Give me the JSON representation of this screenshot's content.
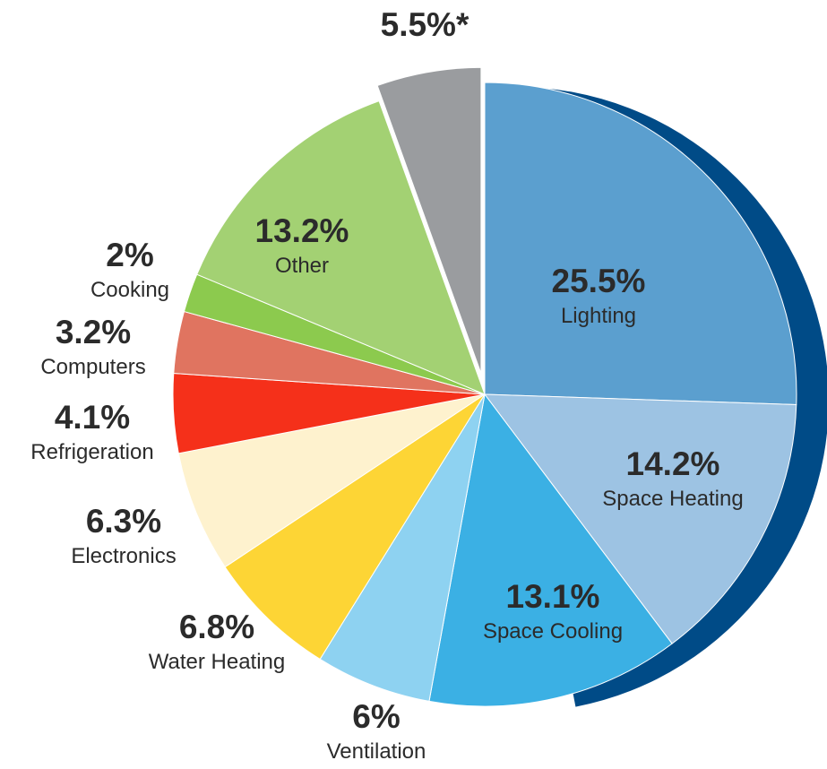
{
  "chart_data": {
    "type": "pie",
    "slices": [
      {
        "label": "Lighting",
        "value_text": "25.5%",
        "value": 25.5,
        "color": "#5b9fcf"
      },
      {
        "label": "Space Heating",
        "value_text": "14.2%",
        "value": 14.2,
        "color": "#9dc3e3"
      },
      {
        "label": "Space Cooling",
        "value_text": "13.1%",
        "value": 13.1,
        "color": "#3bb0e4"
      },
      {
        "label": "Ventilation",
        "value_text": "6%",
        "value": 6,
        "color": "#8ed2f1"
      },
      {
        "label": "Water Heating",
        "value_text": "6.8%",
        "value": 6.8,
        "color": "#fdd535"
      },
      {
        "label": "Electronics",
        "value_text": "6.3%",
        "value": 6.3,
        "color": "#fef2ce"
      },
      {
        "label": "Refrigeration",
        "value_text": "4.1%",
        "value": 4.1,
        "color": "#f5301a"
      },
      {
        "label": "Computers",
        "value_text": "3.2%",
        "value": 3.2,
        "color": "#e07460"
      },
      {
        "label": "Cooking",
        "value_text": "2%",
        "value": 2,
        "color": "#8cca4e"
      },
      {
        "label": "Other",
        "value_text": "13.2%",
        "value": 13.2,
        "color": "#a3d173"
      },
      {
        "label": "",
        "value_text": "5.5%*",
        "value": 5.5,
        "color": "#9a9c9f",
        "exploded": true
      }
    ],
    "rim_color": "#004b87",
    "grid": false,
    "legend": "none (labels on chart)"
  }
}
